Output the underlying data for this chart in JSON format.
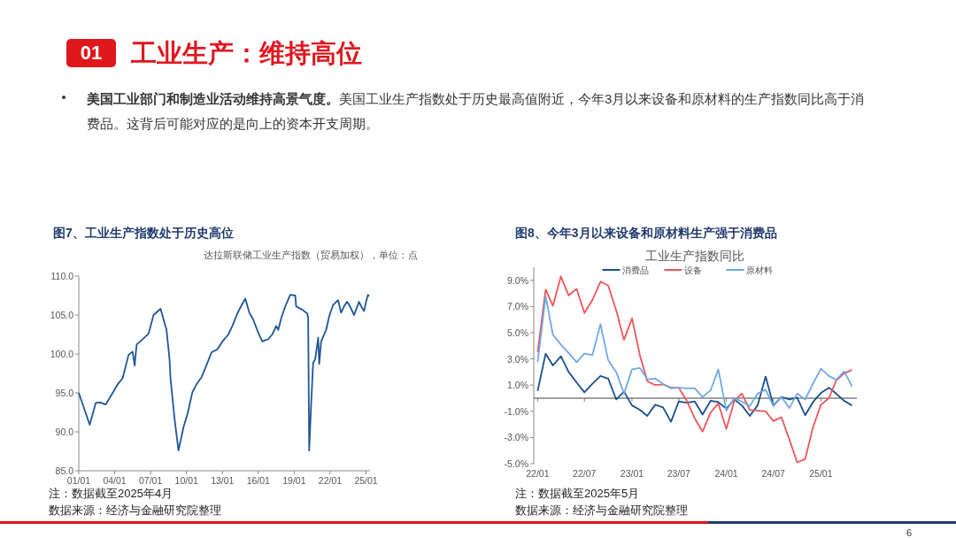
{
  "chart_data": [
    {
      "type": "other",
      "title": "工业生产：维持高位",
      "annotations": [
        "01",
        "美国工业部门和制造业活动维持高景气度。",
        "美国工业生产指数处于历史最高值附近，今年3月以来设备和原材料的生产指数同比高于消费品。这背后可能对应的是向上的资本开支周期。",
        "6"
      ]
    },
    {
      "type": "line",
      "title": "图7、工业生产指数处于历史高位",
      "subtitle": "达拉斯联储工业生产指数（贸易加权），单位：点",
      "annotations": [
        "注：数据截至2025年4月",
        "数据来源：经济与金融研究院整理"
      ],
      "x": [
        "2001-01",
        "2001-12",
        "2002-06",
        "2002-10",
        "2003-04",
        "2003-12",
        "2004-04",
        "2004-09",
        "2005-03",
        "2005-07",
        "2005-09",
        "2005-11",
        "2006-06",
        "2006-11",
        "2007-04",
        "2007-11",
        "2008-05",
        "2008-08",
        "2008-09",
        "2009-01",
        "2009-05",
        "2009-10",
        "2010-02",
        "2010-07",
        "2010-11",
        "2011-04",
        "2011-08",
        "2012-02",
        "2012-08",
        "2013-01",
        "2013-07",
        "2013-11",
        "2014-04",
        "2014-08",
        "2014-12",
        "2015-04",
        "2015-08",
        "2016-01",
        "2016-05",
        "2016-11",
        "2017-03",
        "2017-07",
        "2017-09",
        "2017-12",
        "2018-04",
        "2018-09",
        "2019-02",
        "2019-03",
        "2019-09",
        "2020-02",
        "2020-03",
        "2020-04",
        "2020-06",
        "2020-08",
        "2020-10",
        "2021-01",
        "2021-02",
        "2021-04",
        "2021-09",
        "2021-12",
        "2022-04",
        "2022-09",
        "2022-12",
        "2023-03",
        "2023-06",
        "2023-09",
        "2024-01",
        "2024-06",
        "2024-09",
        "2024-11",
        "2025-01",
        "2025-03",
        "2025-04"
      ],
      "series": [
        {
          "color": "#1f5597",
          "values": [
            95.0,
            90.9,
            93.7,
            93.8,
            93.5,
            95.2,
            96.1,
            96.9,
            99.9,
            100.3,
            98.5,
            101.2,
            102.0,
            102.6,
            105.0,
            105.8,
            103.1,
            99.3,
            96.8,
            91.7,
            87.6,
            90.6,
            92.3,
            95.1,
            96.1,
            97.0,
            98.2,
            100.2,
            100.6,
            101.6,
            102.5,
            103.6,
            105.2,
            106.2,
            107.1,
            105.3,
            104.4,
            102.7,
            101.6,
            101.9,
            102.5,
            103.6,
            103.1,
            104.6,
            106.1,
            107.6,
            107.5,
            106.1,
            105.7,
            105.2,
            104.6,
            87.6,
            93.6,
            98.9,
            99.3,
            102.1,
            98.7,
            101.6,
            103.1,
            104.8,
            106.3,
            106.9,
            105.3,
            106.1,
            106.7,
            106.1,
            105.0,
            106.7,
            105.9,
            105.5,
            106.7,
            107.6,
            107.4
          ]
        }
      ],
      "xlim": [
        "2001-01",
        "2025-05"
      ],
      "xticks": [
        {
          "value": "2001-01",
          "label": "01/01"
        },
        {
          "value": "2004-01",
          "label": "04/01"
        },
        {
          "value": "2007-01",
          "label": "07/01"
        },
        {
          "value": "2010-01",
          "label": "10/01"
        },
        {
          "value": "2013-01",
          "label": "13/01"
        },
        {
          "value": "2016-01",
          "label": "16/01"
        },
        {
          "value": "2019-01",
          "label": "19/01"
        },
        {
          "value": "2022-01",
          "label": "22/01"
        },
        {
          "value": "2025-01",
          "label": "25/01"
        }
      ],
      "ylim": [
        85,
        110
      ],
      "yticks": [
        {
          "value": 85,
          "label": "85.0"
        },
        {
          "value": 90,
          "label": "90.0"
        },
        {
          "value": 95,
          "label": "95.0"
        },
        {
          "value": 100,
          "label": "100.0"
        },
        {
          "value": 105,
          "label": "105.0"
        },
        {
          "value": 110,
          "label": "110.0"
        }
      ],
      "grid": false,
      "legend": false
    },
    {
      "type": "line",
      "title": "图8、今年3月以来设备和原材料生产强于消费品",
      "subtitle": "工业生产指数同比",
      "annotations": [
        "注：数据截至2025年5月",
        "数据来源：经济与金融研究院整理"
      ],
      "x": [
        "2022-01",
        "2022-02",
        "2022-03",
        "2022-04",
        "2022-05",
        "2022-06",
        "2022-07",
        "2022-08",
        "2022-09",
        "2022-10",
        "2022-11",
        "2022-12",
        "2023-01",
        "2023-02",
        "2023-03",
        "2023-04",
        "2023-05",
        "2023-06",
        "2023-07",
        "2023-08",
        "2023-09",
        "2023-10",
        "2023-11",
        "2023-12",
        "2024-01",
        "2024-02",
        "2024-03",
        "2024-04",
        "2024-05",
        "2024-06",
        "2024-07",
        "2024-08",
        "2024-09",
        "2024-10",
        "2024-11",
        "2024-12",
        "2025-01",
        "2025-02",
        "2025-03",
        "2025-04",
        "2025-05"
      ],
      "series": [
        {
          "name": "消费品",
          "color": "#1a4f8f",
          "values": [
            0.56,
            3.4,
            2.5,
            3.2,
            2.0,
            1.2,
            0.45,
            1.1,
            1.7,
            1.5,
            -0.1,
            0.5,
            -0.55,
            -0.9,
            -1.35,
            -0.5,
            -0.7,
            -1.8,
            -0.25,
            -0.35,
            -0.25,
            -1.25,
            -0.2,
            -0.3,
            -0.8,
            -0.1,
            -0.55,
            -1.35,
            -0.55,
            1.65,
            -0.55,
            0.1,
            -0.1,
            0.05,
            -1.3,
            -0.3,
            0.4,
            0.8,
            0.35,
            -0.2,
            -0.55
          ]
        },
        {
          "name": "设备",
          "color": "#f0545a",
          "values": [
            3.5,
            8.3,
            7.05,
            9.3,
            7.85,
            8.35,
            6.5,
            7.5,
            8.9,
            8.6,
            6.7,
            4.45,
            6.1,
            3.25,
            1.3,
            1.0,
            1.05,
            0.8,
            0.8,
            -0.2,
            -1.55,
            -2.55,
            -1.1,
            -0.4,
            -2.35,
            -0.2,
            0.35,
            -0.9,
            -0.95,
            -1.0,
            -1.75,
            -1.45,
            -3.15,
            -4.9,
            -4.65,
            -2.25,
            -0.5,
            0.0,
            1.35,
            1.9,
            2.15
          ]
        },
        {
          "name": "原材料",
          "color": "#6fa8e6",
          "values": [
            2.75,
            7.8,
            4.85,
            4.1,
            3.45,
            2.75,
            3.4,
            3.3,
            5.65,
            2.9,
            2.0,
            0.35,
            2.2,
            2.3,
            1.45,
            1.5,
            1.1,
            0.75,
            0.8,
            0.75,
            0.75,
            0.1,
            0.6,
            2.2,
            -0.95,
            0.0,
            -0.25,
            -0.6,
            0.35,
            0.65,
            -0.6,
            0.1,
            -0.75,
            0.35,
            -0.1,
            1.1,
            2.25,
            1.7,
            1.4,
            2.05,
            0.9
          ]
        }
      ],
      "xlim": [
        "2021-12-17",
        "2025-05-20"
      ],
      "xticks": [
        {
          "value": "2022-01",
          "label": "22/01"
        },
        {
          "value": "2022-07",
          "label": "22/07"
        },
        {
          "value": "2023-01",
          "label": "23/01"
        },
        {
          "value": "2023-07",
          "label": "23/07"
        },
        {
          "value": "2024-01",
          "label": "24/01"
        },
        {
          "value": "2024-07",
          "label": "24/07"
        },
        {
          "value": "2025-01",
          "label": "25/01"
        }
      ],
      "ylim": [
        -5,
        10
      ],
      "yticks": [
        {
          "value": -5,
          "label": "-5.0%"
        },
        {
          "value": -3,
          "label": "-3.0%"
        },
        {
          "value": -1,
          "label": "-1.0%"
        },
        {
          "value": 1,
          "label": "1.0%"
        },
        {
          "value": 3,
          "label": "3.0%"
        },
        {
          "value": 5,
          "label": "5.0%"
        },
        {
          "value": 7,
          "label": "7.0%"
        },
        {
          "value": 9,
          "label": "9.0%"
        }
      ],
      "ref_lines": [
        {
          "axis": "y",
          "value": 0,
          "color": "#404040"
        }
      ],
      "grid": false,
      "legend": "top"
    }
  ]
}
